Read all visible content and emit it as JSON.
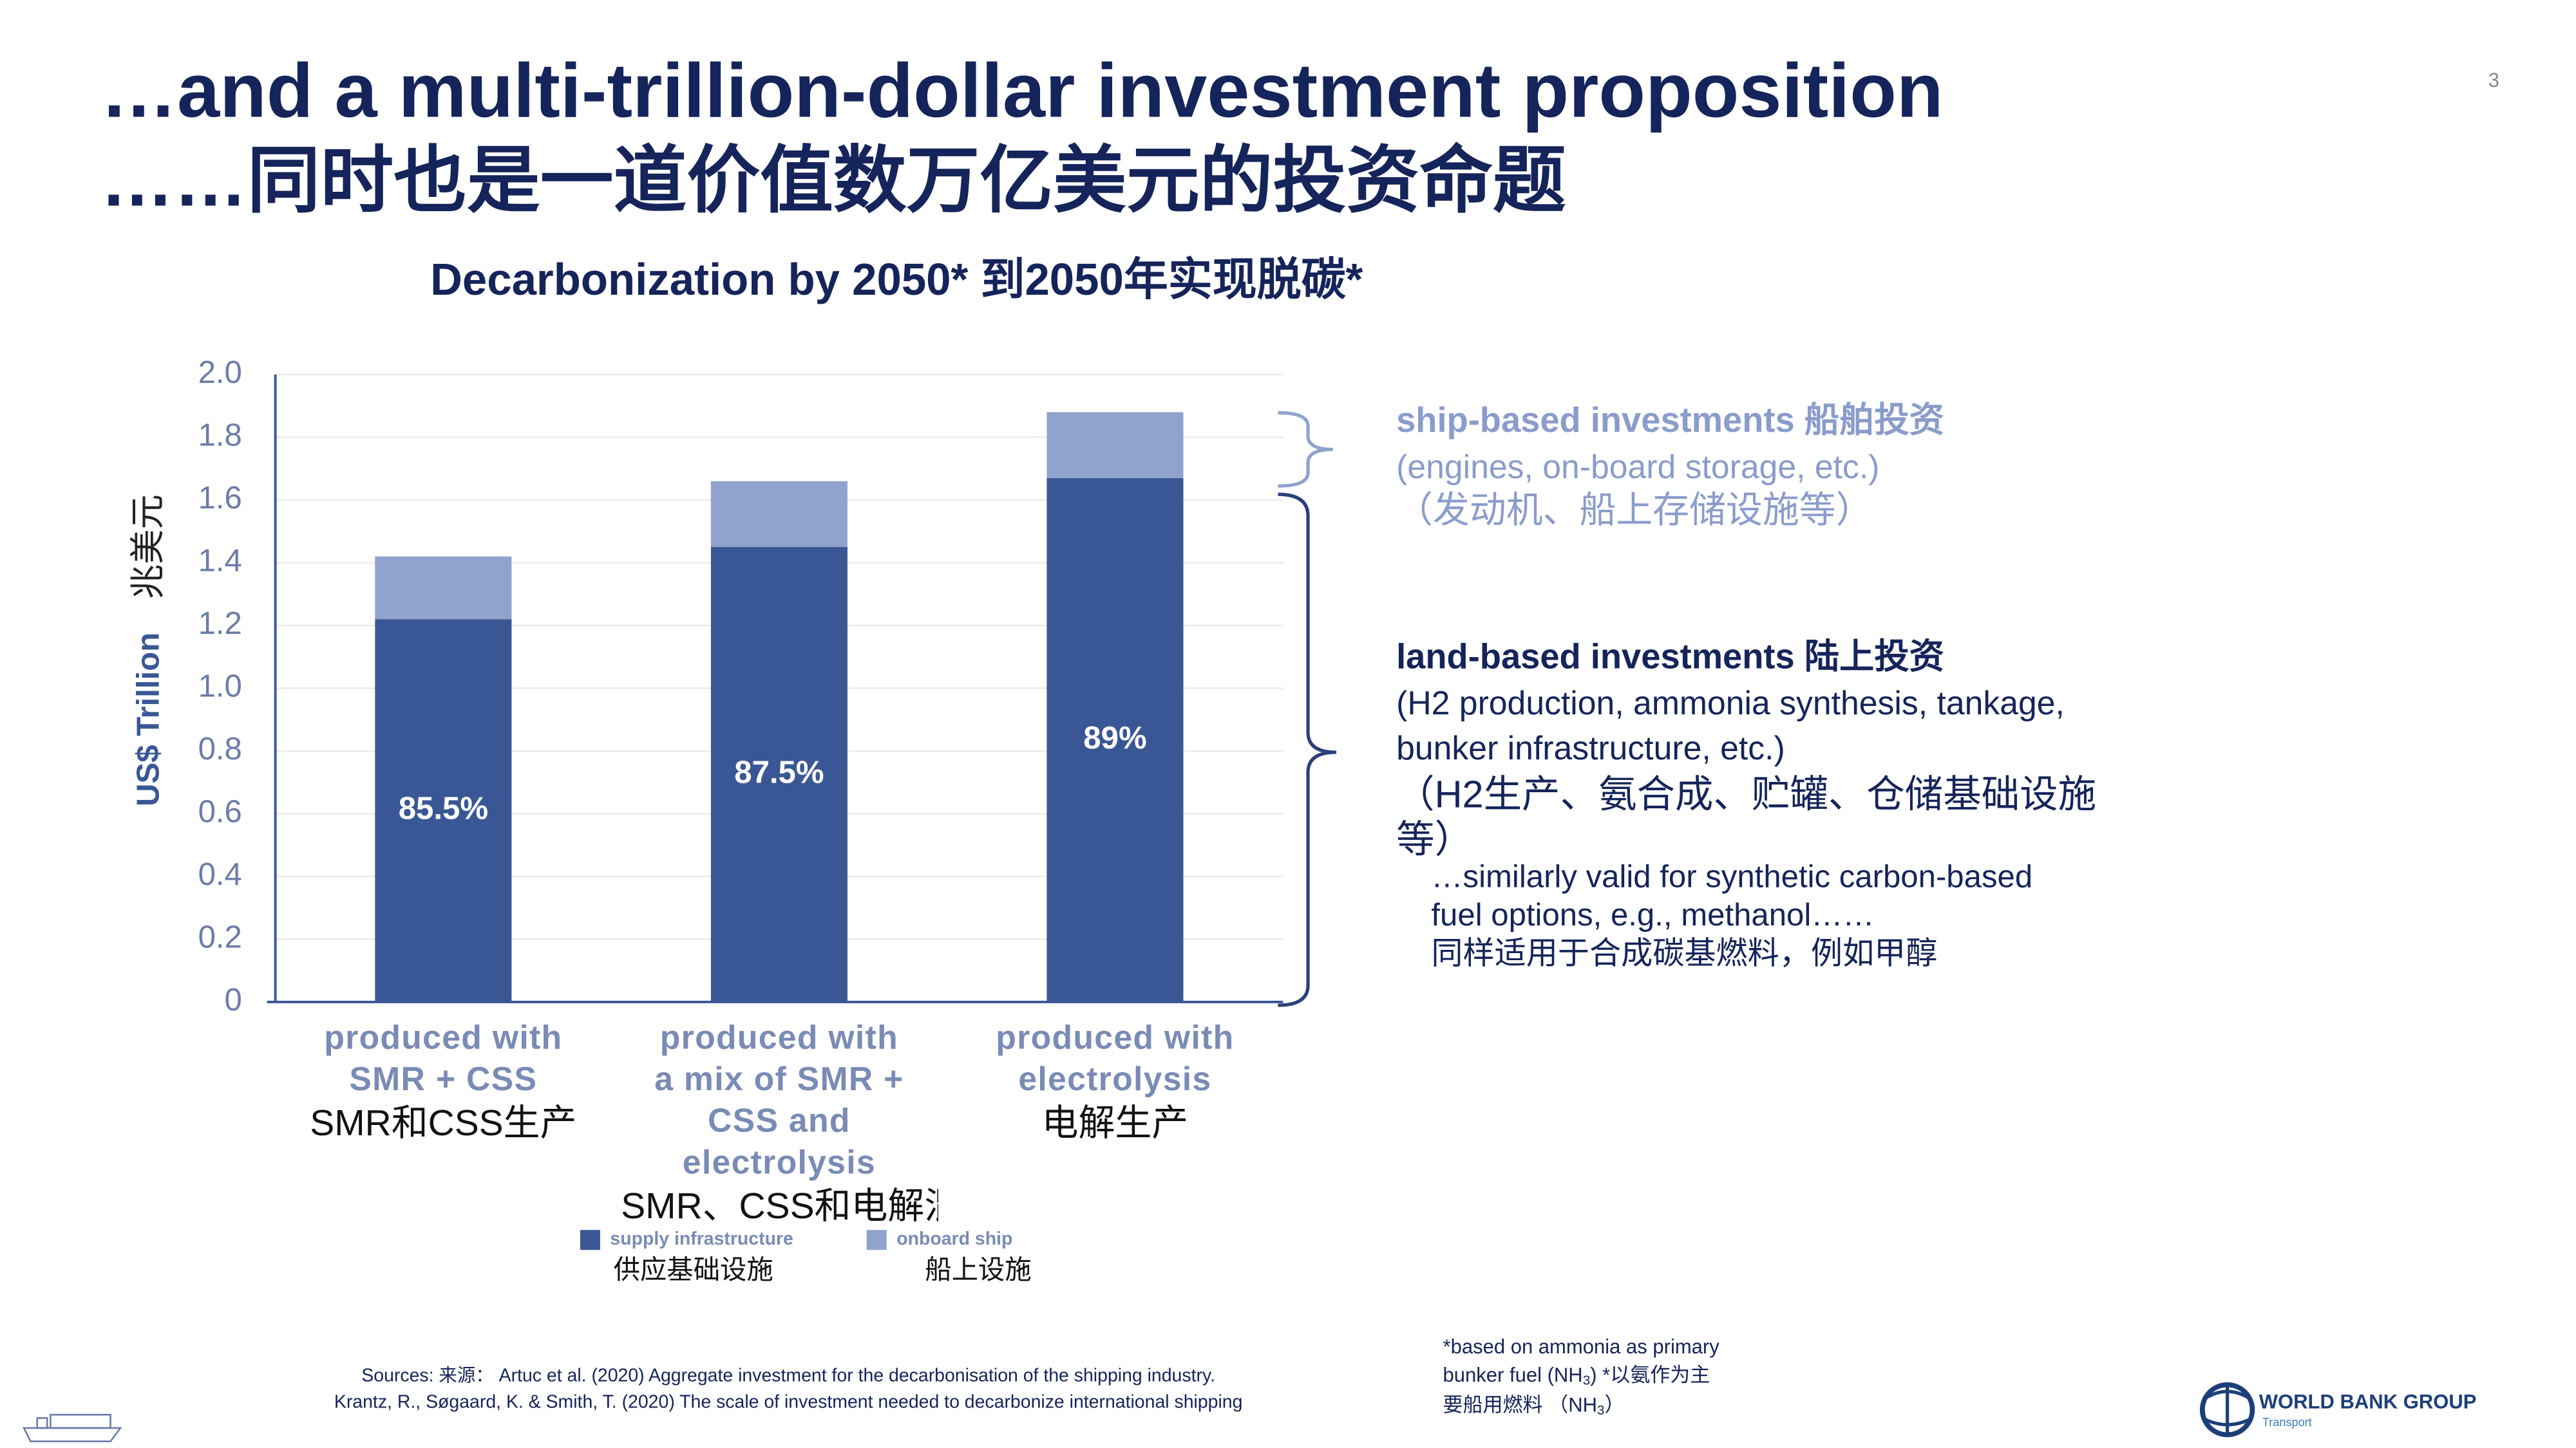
{
  "page_number": "3",
  "heading": {
    "title": "…and a multi-trillion-dollar investment proposition",
    "title_zh": "……同时也是一道价值数万亿美元的投资命题"
  },
  "chart_data": {
    "type": "stacked_bar",
    "title": "Decarbonization by 2050*  到2050年实现脱碳*",
    "ylabel": "US$ Trillion",
    "ylabel_zh": "兆美元",
    "categories": [
      "produced with SMR + CSS",
      "produced with a mix of SMR + CSS and electrolysis",
      "produced with electrolysis"
    ],
    "categories_zh": [
      "SMR和CSS生产",
      "SMR、CSS和电解混合生产",
      "电解生产"
    ],
    "series": [
      {
        "name": "supply infrastructure",
        "name_zh": "供应基础设施",
        "color": "#3a5795",
        "values": [
          1.22,
          1.45,
          1.67
        ]
      },
      {
        "name": "onboard ship",
        "name_zh": "船上设施",
        "color": "#8fa3cc",
        "values": [
          0.2,
          0.21,
          0.21
        ]
      }
    ],
    "annotations": [
      "85.5%",
      "87.5%",
      "89%"
    ],
    "ylim": [
      0,
      2.0
    ],
    "yticks": [
      0,
      0.2,
      0.4,
      0.6,
      0.8,
      {
        "value": 1.0,
        "label": "1.0"
      },
      1.2,
      1.4,
      1.6,
      1.8,
      {
        "value": 2.0,
        "label": "2.0"
      }
    ],
    "grid": true
  },
  "ship_note": {
    "title": "ship-based investments 船舶投资",
    "lines": [
      "(engines, on-board storage, etc.)",
      "（发动机、船上存储设施等）"
    ]
  },
  "land_note": {
    "title": "land-based investments 陆上投资",
    "lines": [
      "(H2 production, ammonia synthesis, tankage,",
      "bunker infrastructure, etc.)",
      "（H2生产、氨合成、贮罐、仓储基础设施",
      "等）"
    ]
  },
  "fuel_note": [
    "…similarly valid for synthetic carbon-based",
    "fuel options, e.g., methanol……",
    "同样适用于合成碳基燃料，例如甲醇"
  ],
  "sources": [
    "Sources: 来源：  Artuc et al. (2020) Aggregate investment for the decarbonisation of the shipping industry.",
    "Krantz, R., Søgaard, K. & Smith, T. (2020) The scale of investment needed to decarbonize international shipping"
  ],
  "footnote": [
    "*based on ammonia as primary",
    "bunker fuel (NH",
    "3",
    ") *以氨作为主",
    "要船用燃料 （NH",
    "3",
    "）"
  ],
  "logo": {
    "name": "WORLD BANK GROUP",
    "sub": "Transport"
  }
}
